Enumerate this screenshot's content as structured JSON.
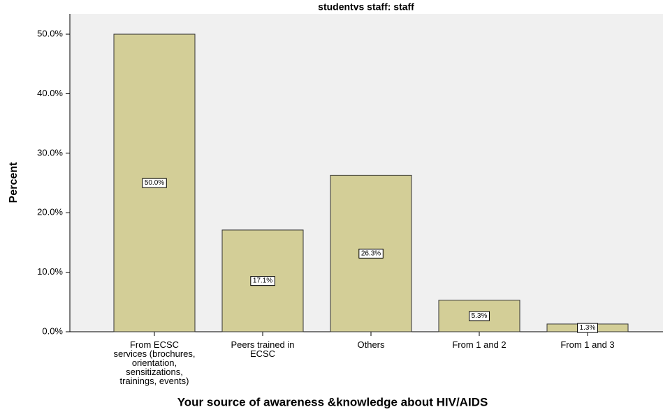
{
  "chart_data": {
    "type": "bar",
    "title": "studentvs staff: staff",
    "x_label": "Your source of awareness &knowledge about HIV/AIDS",
    "y_label": "Percent",
    "categories": [
      "From ECSC services (brochures, orientation, sensitizations, trainings, events)",
      "Peers  trained in ECSC",
      "Others",
      "From 1 and 2",
      "From 1 and 3"
    ],
    "values": [
      50.0,
      17.1,
      26.3,
      5.3,
      1.3
    ],
    "value_labels": [
      "50.0%",
      "17.1%",
      "26.3%",
      "5.3%",
      "1.3%"
    ],
    "color": "#d3ce97",
    "ylim": [
      0,
      53.4
    ],
    "yticks": [
      {
        "value": 0,
        "label": "0.0%"
      },
      {
        "value": 10,
        "label": "10.0%"
      },
      {
        "value": 20,
        "label": "20.0%"
      },
      {
        "value": 30,
        "label": "30.0%"
      },
      {
        "value": 40,
        "label": "40.0%"
      },
      {
        "value": 50,
        "label": "50.0%"
      }
    ]
  }
}
